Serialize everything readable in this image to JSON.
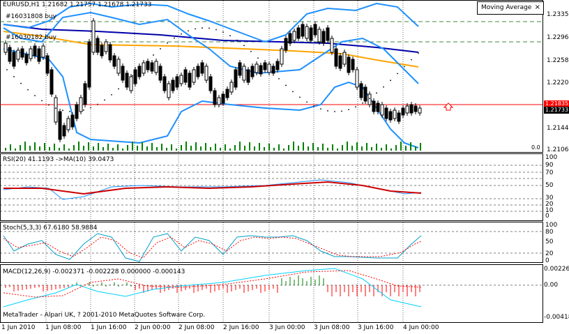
{
  "main": {
    "header": "EURUSD,H1  1.21682 1.21757 1.21678 1.21733",
    "order1": "#16031808 buy",
    "order2": "#16030182 buy",
    "ma_indicator_label": "Moving Average",
    "ma_close_glyph": "×",
    "price_scale": [
      "1.23350",
      "1.22960",
      "1.22580",
      "1.22200",
      "1.21440",
      "1.21060"
    ],
    "price_line_ask": "1.21835",
    "price_line_bid": "1.21733",
    "volume_label": "0.0"
  },
  "rsi": {
    "title": "RSI(20) 41.1193  ->MA(10) 39.0473",
    "scale": [
      "100",
      "90",
      "70",
      "50",
      "30",
      "20",
      "10",
      "0"
    ]
  },
  "stoch": {
    "title": "Stoch(5,3,3) 67.6180 58.9884",
    "scale": [
      "100",
      "80",
      "50",
      "20",
      "0"
    ]
  },
  "macd": {
    "title": "MACD(12,26,9) -0.002371 -0.002228 0.000000 -0.000143",
    "scale": [
      "0.00226",
      "0.00",
      "-0.00418"
    ]
  },
  "footer": "MetaTrader - Alpari UK, ? 2001-2010 MetaQuotes Software Corp.",
  "time_axis": [
    "1 Jun 2010",
    "1 Jun 08:00",
    "1 Jun 16:00",
    "2 Jun 00:00",
    "2 Jun 08:00",
    "2 Jun 16:00",
    "3 Jun 00:00",
    "3 Jun 08:00",
    "3 Jun 16:00",
    "4 Jun 00:00"
  ],
  "colors": {
    "ma_slow": "#0000aa",
    "ma_mid": "#ffa500",
    "bollinger": "#1e90ff",
    "price_line_red": "#ff0000",
    "ask_tag": "#ff0000",
    "bid_tag": "#000000",
    "rsi_line": "#1e90ff",
    "rsi_ma": "#cc0000",
    "stoch_main": "#00a0c8",
    "stoch_signal": "#ff0000",
    "macd_pos": "#008000",
    "macd_neg": "#ff0000",
    "macd_signal": "#00d0ff",
    "volume": "#008000",
    "grid": "#000000"
  }
}
